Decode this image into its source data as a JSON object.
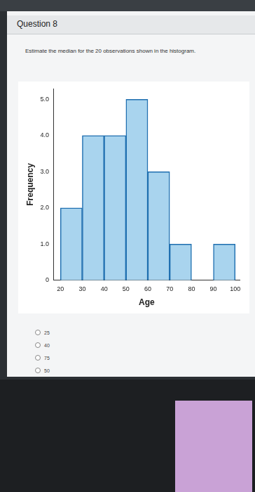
{
  "question": {
    "title": "Question 8",
    "text": "Estimate the median for the 20 observations shown in the histogram.",
    "choices": [
      "25",
      "40",
      "75",
      "50"
    ]
  },
  "chart_data": {
    "type": "histogram",
    "bins": [
      20,
      30,
      40,
      50,
      60,
      70,
      80,
      90,
      100
    ],
    "counts": [
      2,
      4,
      4,
      5,
      3,
      1,
      0,
      1
    ],
    "color": "#a9d4ee",
    "x_label": "Age",
    "y_label": "Frequency",
    "xlim": [
      17,
      102
    ],
    "xticks": [
      20,
      30,
      40,
      50,
      60,
      70,
      80,
      90,
      100
    ],
    "ylim": [
      0,
      5.3
    ],
    "yticks": [
      0,
      {
        "value": 1,
        "label": "1.0"
      },
      {
        "value": 2,
        "label": "2.0"
      },
      {
        "value": 3,
        "label": "3.0"
      },
      {
        "value": 4,
        "label": "4.0"
      },
      {
        "value": 5,
        "label": "5.0"
      }
    ],
    "grid": false
  }
}
